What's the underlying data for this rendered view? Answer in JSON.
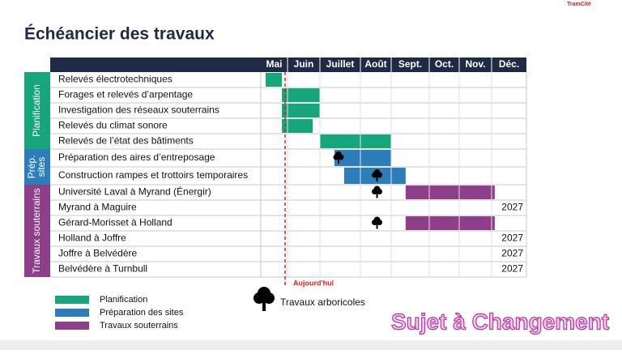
{
  "logo": "TramCité",
  "title": "Échéancier des travaux",
  "months": [
    "Mai",
    "Juin",
    "Juillet",
    "Août",
    "Sept.",
    "Oct.",
    "Nov.",
    "Déc."
  ],
  "groups": [
    {
      "label": [
        "Planification"
      ],
      "color": "#17a57b",
      "tasks": [
        {
          "label": "Relevés électrotechniques",
          "start": 0.18,
          "end": 0.79
        },
        {
          "label": "Forages et relevés d’arpentage",
          "start": 0.79,
          "end": 2.0
        },
        {
          "label": "Investigation des réseaux souterrains",
          "start": 0.79,
          "end": 2.0
        },
        {
          "label": "Relevés du climat sonore",
          "start": 0.79,
          "end": 1.78
        },
        {
          "label": "Relevés de l’état des bâtiments",
          "start": 2.0,
          "end": 4.0
        }
      ]
    },
    {
      "label": [
        "Prép.",
        "sites"
      ],
      "color": "#2d7dbb",
      "tasks": [
        {
          "label": "Préparation des aires d’entreposage",
          "start": 2.36,
          "end": 4.0,
          "trees": [
            2.46
          ]
        },
        {
          "label": "Construction rampes et trottoirs temporaires",
          "start": 2.6,
          "end": 4.38,
          "trees": [
            3.54
          ]
        }
      ]
    },
    {
      "label": [
        "Travaux souterrains"
      ],
      "color": "#8e3f8a",
      "tasks": [
        {
          "label": "Université Laval à Myrand (Énergir)",
          "start": 4.38,
          "end": 7.09,
          "trees": [
            3.54
          ]
        },
        {
          "label": "Myrand à Maguire",
          "note": "2027"
        },
        {
          "label": "Gérard-Morisset à Holland",
          "start": 4.38,
          "end": 7.09,
          "trees": [
            3.54
          ]
        },
        {
          "label": "Holland à Joffre",
          "note": "2027"
        },
        {
          "label": "Joffre à Belvédère",
          "note": "2027"
        },
        {
          "label": "Belvédère à Turnbull",
          "note": "2027"
        }
      ]
    }
  ],
  "today": {
    "label": "Aujourd'hui",
    "position": 0.91
  },
  "legend": [
    {
      "label": "Planification",
      "color": "#17a57b"
    },
    {
      "label": "Préparation des sites",
      "color": "#2d7dbb"
    },
    {
      "label": "Travaux souterrains",
      "color": "#8e3f8a"
    }
  ],
  "tree_legend": "Travaux arboricoles",
  "disclaimer": "Sujet à Changement"
}
